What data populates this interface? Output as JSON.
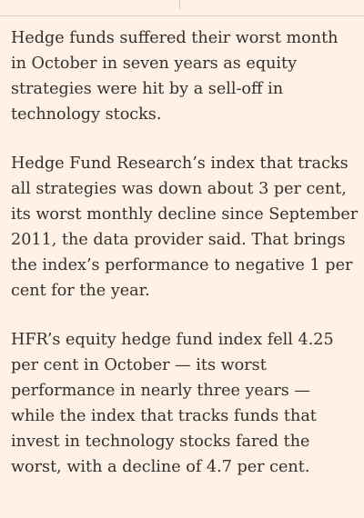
{
  "article": {
    "paragraphs": [
      "Hedge funds suffered their worst month in October in seven years as equity strategies were hit by a sell-off in technology stocks.",
      "Hedge Fund Research’s index that tracks all strategies was down about 3 per cent, its worst monthly decline since September 2011, the data provider said. That brings the index’s performance to negative 1 per cent for the year.",
      "HFR’s equity hedge fund index fell 4.25 per cent in October — its worst performance in nearly three years — while the index that tracks funds that invest in technology stocks fared the worst, with a decline of 4.7 per cent."
    ]
  },
  "colors": {
    "background": "#fff1e5",
    "text": "#33302e"
  }
}
